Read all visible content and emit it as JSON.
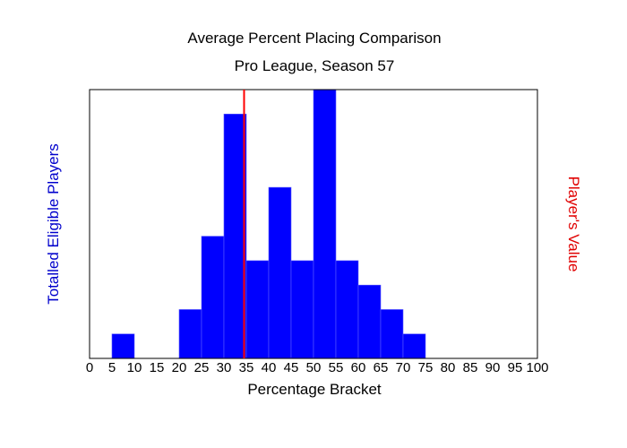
{
  "chart_data": {
    "type": "bar",
    "title": "Average Percent Placing Comparison",
    "subtitle": "Pro League, Season 57",
    "xlabel": "Percentage Bracket",
    "ylabel": "Totalled Eligible Players",
    "y2label": "Player's Value",
    "x_ticks": [
      "0",
      "5",
      "10",
      "15",
      "20",
      "25",
      "30",
      "35",
      "40",
      "45",
      "50",
      "55",
      "60",
      "65",
      "70",
      "75",
      "80",
      "85",
      "90",
      "95",
      "100"
    ],
    "xlim": [
      0,
      100
    ],
    "ylim": [
      0,
      11
    ],
    "bin_width": 5,
    "bins": [
      {
        "start": 5,
        "count": 1
      },
      {
        "start": 20,
        "count": 2
      },
      {
        "start": 25,
        "count": 5
      },
      {
        "start": 30,
        "count": 10
      },
      {
        "start": 35,
        "count": 4
      },
      {
        "start": 40,
        "count": 7
      },
      {
        "start": 45,
        "count": 4
      },
      {
        "start": 50,
        "count": 11
      },
      {
        "start": 55,
        "count": 4
      },
      {
        "start": 60,
        "count": 3
      },
      {
        "start": 65,
        "count": 2
      },
      {
        "start": 70,
        "count": 1
      }
    ],
    "player_value": 34.5,
    "colors": {
      "bar_fill": "#0000ff",
      "bar_stroke": "#5a5aff",
      "player_line": "#ff0000",
      "ylabel": "#0000cc",
      "y2label": "#e00000"
    },
    "grid": false
  }
}
